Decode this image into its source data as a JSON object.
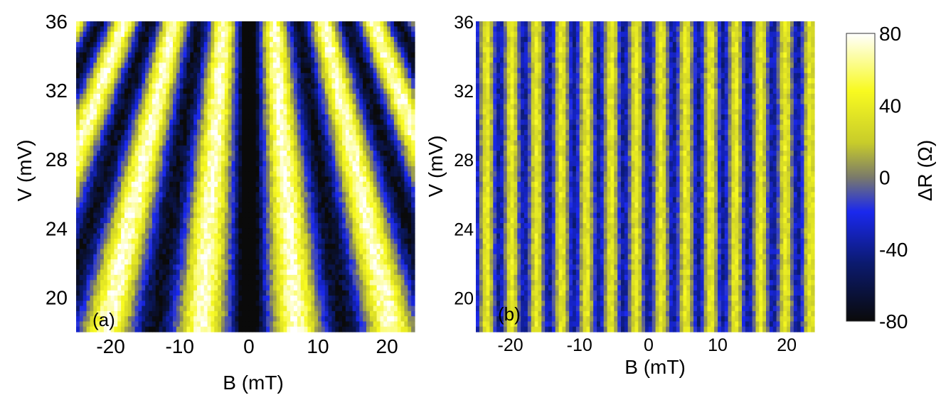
{
  "chart_data": [
    {
      "type": "heatmap",
      "panel_label": "(a)",
      "xlabel": "B (mT)",
      "ylabel": "V (mV)",
      "xlim": [
        -25,
        24
      ],
      "ylim": [
        18,
        36
      ],
      "x_ticks": [
        "-20",
        "-10",
        "0",
        "10",
        "20"
      ],
      "y_ticks": [
        "20",
        "24",
        "28",
        "32",
        "36"
      ],
      "z_unit": "ΔR (Ω)",
      "z_range": [
        -80,
        80
      ],
      "pattern": {
        "description_values": true,
        "period_mT_at_V": [
          {
            "V": 36,
            "period": 7.2
          },
          {
            "V": 24,
            "period": 11.6
          }
        ],
        "center_dip_mT": 0,
        "amplitude_ohm": 75
      }
    },
    {
      "type": "heatmap",
      "panel_label": "(b)",
      "xlabel": "B (mT)",
      "ylabel": "V (mV)",
      "xlim": [
        -25,
        24
      ],
      "ylim": [
        18,
        36
      ],
      "x_ticks": [
        "-20",
        "-10",
        "0",
        "10",
        "20"
      ],
      "y_ticks": [
        "20",
        "24",
        "28",
        "32",
        "36"
      ],
      "z_unit": "ΔR (Ω)",
      "z_range": [
        -80,
        80
      ],
      "pattern": {
        "period_mT": 3.6,
        "center_dip_mT": 0,
        "amplitude_ohm": 45
      }
    }
  ],
  "colorbar": {
    "label": "ΔR (Ω)",
    "ticks": [
      "80",
      "40",
      "0",
      "-40",
      "-80"
    ],
    "tick_values": [
      80,
      40,
      0,
      -40,
      -80
    ],
    "colors": [
      "#0a0a0a",
      "#0b1a6e",
      "#1a28ee",
      "#7a7a6a",
      "#c8cc2a",
      "#f8fa20",
      "#ffffff"
    ]
  }
}
